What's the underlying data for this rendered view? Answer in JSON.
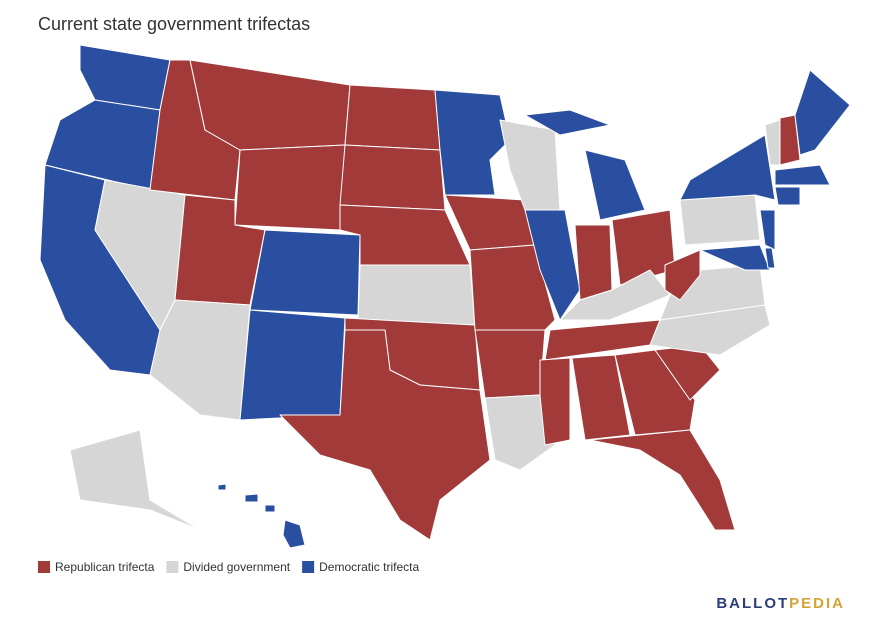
{
  "title": "Current state government trifectas",
  "legend": [
    {
      "label": "Republican trifecta",
      "color": "#a33a3a"
    },
    {
      "label": "Divided government",
      "color": "#d6d6d6"
    },
    {
      "label": "Democratic trifecta",
      "color": "#2a4fa1"
    }
  ],
  "brand": {
    "first": "BALLOT",
    "second": "PEDIA"
  }
}
